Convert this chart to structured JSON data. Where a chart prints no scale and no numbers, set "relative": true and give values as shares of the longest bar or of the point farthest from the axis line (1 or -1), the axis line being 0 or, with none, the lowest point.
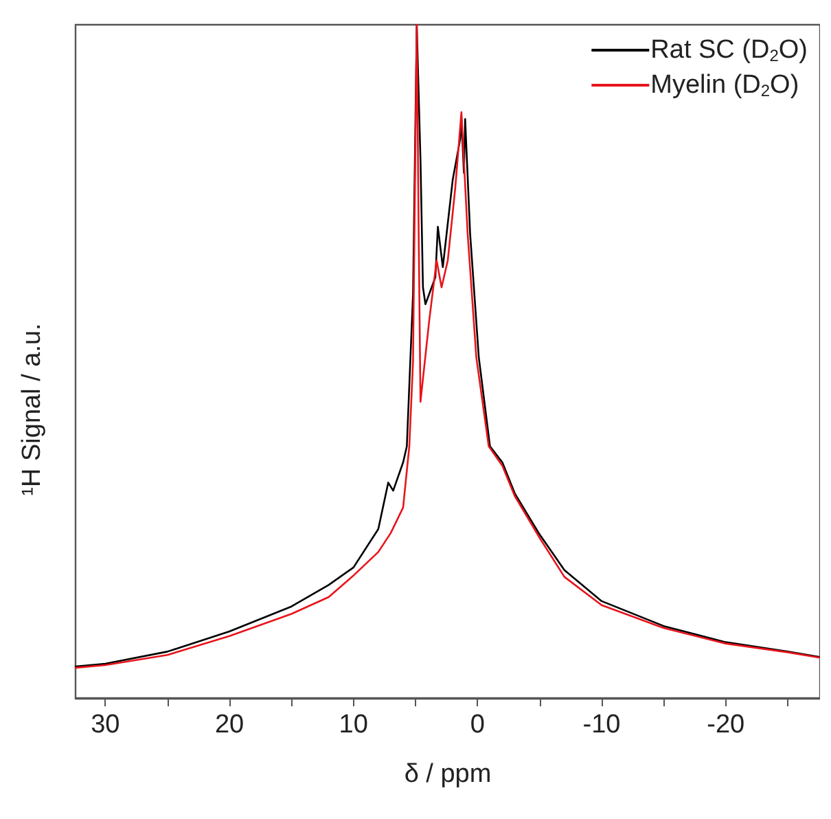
{
  "chart_data": {
    "type": "line",
    "relative": true,
    "xlabel": "δ / ppm",
    "ylabel": "¹H Signal / a.u.",
    "xlim": [
      32.4,
      -27.6
    ],
    "xticks": [
      30,
      {
        "value": 25,
        "label": null
      },
      20,
      {
        "value": 15,
        "label": null
      },
      10,
      {
        "value": 5,
        "label": null
      },
      0,
      {
        "value": -5,
        "label": null
      },
      -10,
      {
        "value": -15,
        "label": null
      },
      -20,
      {
        "value": -25,
        "label": null
      }
    ],
    "legend": "top right",
    "grid": false,
    "marker": "none",
    "line_style": "solid",
    "series": [
      {
        "name": "Rat SC (D$_{2}$O)",
        "color": "#000000",
        "x": [
          32.4,
          30,
          25,
          20,
          15,
          12,
          10,
          8,
          7.2,
          6.8,
          6,
          5.7,
          5.2,
          4.9,
          4.6,
          4.4,
          4.2,
          3.4,
          3.2,
          2.8,
          2,
          1.4,
          1.3,
          1.1,
          1,
          0.6,
          -0.1,
          -1,
          -2,
          -3,
          -5,
          -7,
          -10,
          -15,
          -20,
          -25,
          -27.6
        ],
        "values": [
          0.047,
          0.051,
          0.069,
          0.099,
          0.136,
          0.168,
          0.194,
          0.251,
          0.32,
          0.308,
          0.35,
          0.374,
          0.6,
          1,
          0.8,
          0.61,
          0.585,
          0.625,
          0.7,
          0.64,
          0.77,
          0.83,
          0.86,
          0.78,
          0.86,
          0.69,
          0.506,
          0.374,
          0.35,
          0.304,
          0.243,
          0.19,
          0.144,
          0.107,
          0.083,
          0.069,
          0.061
        ]
      },
      {
        "name": "Myelin (D$_{2}$O)",
        "color": "#e8141b",
        "x": [
          32.4,
          30,
          25,
          20,
          15,
          12,
          10,
          8,
          7,
          6,
          5.5,
          5.2,
          4.9,
          4.75,
          4.6,
          3.9,
          3.3,
          2.9,
          2.4,
          1.8,
          1.3,
          0.8,
          0.1,
          -0.9,
          -2,
          -3,
          -5,
          -7,
          -10,
          -15,
          -20,
          -25,
          -27.6
        ],
        "values": [
          0.045,
          0.049,
          0.064,
          0.092,
          0.125,
          0.15,
          0.182,
          0.217,
          0.245,
          0.283,
          0.374,
          0.5,
          1,
          0.7,
          0.44,
          0.56,
          0.65,
          0.61,
          0.65,
          0.757,
          0.87,
          0.69,
          0.506,
          0.374,
          0.345,
          0.3,
          0.238,
          0.18,
          0.138,
          0.104,
          0.081,
          0.068,
          0.06
        ]
      }
    ]
  }
}
